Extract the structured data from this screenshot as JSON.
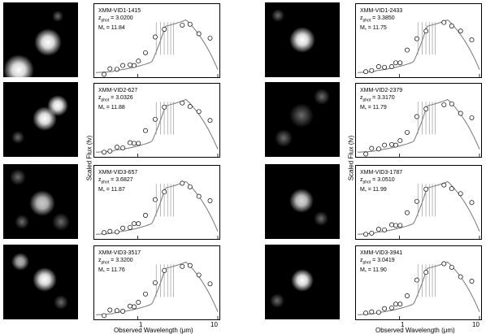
{
  "figure": {
    "ylabel": "Scaled Flux (fν)",
    "xlabel": "Observed Wavelength (μm)",
    "xticks": [
      "1",
      "10"
    ],
    "xlim": [
      0.3,
      10
    ]
  },
  "panels": [
    {
      "id": "XMM-VID1-1415",
      "zphot": "3.0200",
      "mass": "11.84"
    },
    {
      "id": "XMM-VID2-627",
      "zphot": "3.0326",
      "mass": "11.88"
    },
    {
      "id": "XMM-VID3-657",
      "zphot": "3.6827",
      "mass": "11.87"
    },
    {
      "id": "XMM-VID3-3517",
      "zphot": "3.3200",
      "mass": "11.76"
    },
    {
      "id": "XMM-VID1-2433",
      "zphot": "3.3850",
      "mass": "11.75"
    },
    {
      "id": "XMM-VID2-2379",
      "zphot": "3.3170",
      "mass": "11.79"
    },
    {
      "id": "XMM-VID3-1787",
      "zphot": "3.0510",
      "mass": "11.99"
    },
    {
      "id": "XMM-VID3-3941",
      "zphot": "3.0419",
      "mass": "11.90"
    }
  ],
  "chart_data": {
    "type": "scatter",
    "xlabel": "Observed Wavelength (μm)",
    "ylabel": "Scaled Flux (fν)",
    "xscale": "log",
    "xlim": [
      0.3,
      10
    ],
    "series_note": "",
    "series": [
      {
        "name": "",
        "x": [
          0.38,
          0.45,
          0.55,
          0.65,
          0.8,
          0.9,
          1.02,
          1.25,
          1.65,
          2.15,
          3.6,
          4.5,
          5.8,
          8.0
        ],
        "y": [
          0.05,
          0.1,
          0.12,
          0.14,
          0.18,
          0.2,
          0.23,
          0.4,
          0.62,
          0.78,
          0.88,
          0.85,
          0.72,
          0.6
        ]
      }
    ]
  }
}
